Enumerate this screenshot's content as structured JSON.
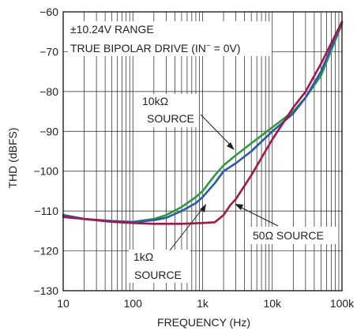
{
  "chart_data": {
    "type": "line",
    "xlabel": "FREQUENCY (Hz)",
    "ylabel": "THD (dBFS)",
    "x_scale": "log",
    "xlim": [
      10,
      100000
    ],
    "ylim": [
      -130,
      -60
    ],
    "x_ticks": [
      10,
      100,
      1000,
      10000,
      100000
    ],
    "x_tick_labels": [
      "10",
      "100",
      "1k",
      "10k",
      "100k"
    ],
    "y_ticks": [
      -60,
      -70,
      -80,
      -90,
      -100,
      -110,
      -120,
      -130
    ],
    "y_tick_labels": [
      "−60",
      "−70",
      "−80",
      "−90",
      "−100",
      "−110",
      "−120",
      "−130"
    ],
    "grid": true,
    "annotations": {
      "range_line1": "±10.24V RANGE",
      "range_line2_pre": "TRUE BIPOLAR DRIVE (IN",
      "range_line2_sup": "−",
      "range_line2_post": " = 0V)",
      "src_10k_line1": "10kΩ",
      "src_10k_line2": "SOURCE",
      "src_1k_line1": "1kΩ",
      "src_1k_line2": "SOURCE",
      "src_50": "50Ω SOURCE"
    },
    "series": [
      {
        "color": "#2e9a3e",
        "x": [
          10,
          20,
          50,
          100,
          200,
          300,
          500,
          800,
          1000,
          1500,
          2000,
          3000,
          5000,
          10000,
          20000,
          30000,
          50000,
          100000
        ],
        "y": [
          -111,
          -112,
          -112.5,
          -112.7,
          -112,
          -111,
          -109,
          -106.5,
          -105,
          -101,
          -98.5,
          -96,
          -93,
          -89,
          -85,
          -81.5,
          -76,
          -63
        ]
      },
      {
        "color": "#2a5aa8",
        "x": [
          10,
          20,
          50,
          100,
          200,
          300,
          500,
          800,
          1000,
          1500,
          2000,
          3000,
          5000,
          10000,
          20000,
          30000,
          50000,
          100000
        ],
        "y": [
          -111,
          -112,
          -112.5,
          -112.8,
          -112.3,
          -111.7,
          -110,
          -108,
          -106.5,
          -103,
          -100,
          -98,
          -95,
          -90,
          -85.5,
          -81.5,
          -75,
          -62.5
        ]
      },
      {
        "color": "#a3174a",
        "x": [
          10,
          20,
          50,
          100,
          200,
          500,
          1000,
          1500,
          2000,
          2500,
          3000,
          5000,
          10000,
          20000,
          30000,
          50000,
          100000
        ],
        "y": [
          -111.5,
          -112,
          -112.7,
          -113,
          -113.2,
          -113.2,
          -113,
          -112.8,
          -111,
          -108.5,
          -107,
          -101,
          -92,
          -84,
          -80,
          -73,
          -62.5
        ]
      }
    ]
  }
}
